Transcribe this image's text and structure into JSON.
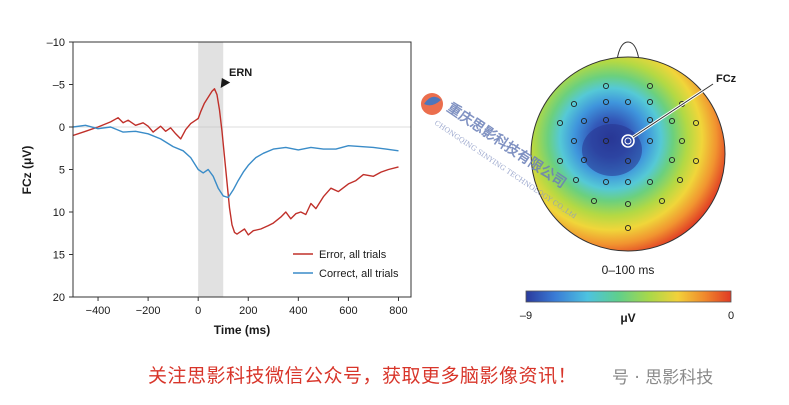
{
  "chart_data": [
    {
      "type": "line",
      "xlabel": "Time (ms)",
      "ylabel": "FCz (μV)",
      "xlim": [
        -500,
        850
      ],
      "ylim": [
        -10,
        20
      ],
      "y_inverted": true,
      "x_ticks": [
        "−400",
        "−200",
        "0",
        "200",
        "400",
        "600",
        "800"
      ],
      "x_tick_values": [
        -400,
        -200,
        0,
        200,
        400,
        600,
        800
      ],
      "y_ticks": [
        "–10",
        "–5",
        "0",
        "5",
        "10",
        "15",
        "20"
      ],
      "y_tick_values": [
        -10,
        -5,
        0,
        5,
        10,
        15,
        20
      ],
      "shaded_window": [
        0,
        100
      ],
      "annotation": "ERN",
      "legend_position": "bottom-right",
      "grid": false,
      "series": [
        {
          "name": "Error, all trials",
          "color": "#c0302a",
          "x": [
            -500,
            -450,
            -400,
            -350,
            -320,
            -300,
            -280,
            -250,
            -220,
            -200,
            -180,
            -150,
            -130,
            -110,
            -90,
            -70,
            -50,
            -30,
            -10,
            0,
            10,
            25,
            40,
            55,
            65,
            75,
            85,
            95,
            105,
            115,
            125,
            135,
            145,
            155,
            170,
            185,
            200,
            220,
            250,
            280,
            300,
            330,
            350,
            370,
            390,
            410,
            430,
            450,
            470,
            500,
            530,
            560,
            600,
            630,
            660,
            700,
            730,
            760,
            800
          ],
          "y": [
            1.0,
            0.5,
            0.0,
            -0.6,
            -1.1,
            -0.5,
            -0.8,
            -0.2,
            -0.5,
            -0.1,
            0.6,
            -0.1,
            0.5,
            0.1,
            0.8,
            1.4,
            0.3,
            -0.4,
            -0.8,
            -1.0,
            -1.8,
            -2.8,
            -3.5,
            -4.2,
            -4.5,
            -3.8,
            -2.0,
            0.5,
            3.5,
            6.5,
            9.5,
            11.5,
            12.4,
            12.6,
            12.3,
            12.0,
            12.7,
            12.2,
            12.0,
            11.6,
            11.3,
            10.6,
            10.0,
            10.8,
            10.2,
            10.0,
            10.3,
            9.0,
            9.6,
            8.2,
            7.2,
            7.6,
            6.7,
            6.3,
            5.6,
            5.8,
            5.3,
            5.0,
            4.7
          ]
        },
        {
          "name": "Correct, all trials",
          "color": "#3a8cc8",
          "x": [
            -500,
            -450,
            -400,
            -350,
            -300,
            -250,
            -200,
            -150,
            -100,
            -60,
            -30,
            0,
            20,
            40,
            60,
            80,
            100,
            120,
            140,
            160,
            180,
            200,
            230,
            260,
            300,
            350,
            400,
            450,
            500,
            550,
            600,
            650,
            700,
            750,
            800
          ],
          "y": [
            0.0,
            -0.2,
            0.2,
            0.0,
            0.6,
            0.5,
            0.8,
            1.4,
            2.3,
            2.8,
            3.6,
            5.0,
            5.4,
            5.0,
            5.8,
            7.2,
            8.1,
            8.3,
            7.4,
            6.3,
            5.3,
            4.5,
            3.6,
            3.1,
            2.6,
            2.4,
            2.7,
            2.4,
            2.6,
            2.6,
            2.2,
            2.3,
            2.4,
            2.6,
            2.8
          ]
        }
      ]
    },
    {
      "type": "heatmap",
      "subtype": "scalp-topography",
      "caption": "0–100 ms",
      "electrode_label": "FCz",
      "colorbar_label": "μV",
      "colorbar_min_label": "–9",
      "colorbar_max_label": "0",
      "colorbar_range": [
        -9,
        0
      ],
      "colormap": [
        "#2a3a9c",
        "#3a7bd5",
        "#4dc3e0",
        "#5fcf8c",
        "#a8d84a",
        "#f2d13a",
        "#f08a2c",
        "#e03a24"
      ],
      "minimum_near": "FCz",
      "electrode_count": 31
    }
  ],
  "watermark": {
    "company": "重庆思影科技有限公司",
    "company_en": "CHONGQING SINYING TECHNOLOGY CO.,Ltd"
  },
  "footer": {
    "promo_text": "关注思影科技微信公众号，获取更多脑影像资讯！",
    "source_text": "号 · 思影科技"
  }
}
